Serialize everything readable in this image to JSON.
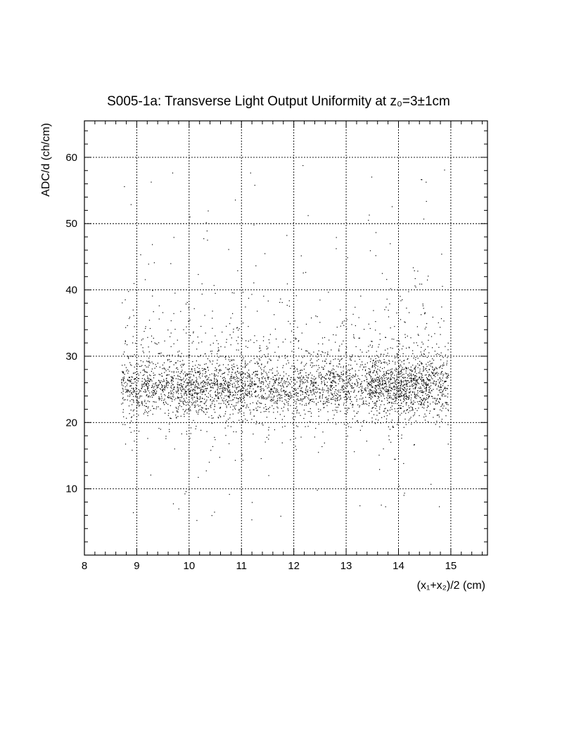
{
  "chart_data": {
    "type": "scatter",
    "title": "S005-1a: Transverse Light Output Uniformity at z₀=3±1cm",
    "xlabel": "(x₁+x₂)/2 (cm)",
    "ylabel": "ADC/d (ch/cm)",
    "xlim": [
      8,
      15.7
    ],
    "ylim": [
      0,
      65.5
    ],
    "x_ticks": [
      8,
      9,
      10,
      11,
      12,
      13,
      14,
      15
    ],
    "y_ticks": [
      10,
      20,
      30,
      40,
      50,
      60
    ],
    "grid": true,
    "marker_color": "#000000",
    "distribution": {
      "x_range": [
        8.7,
        14.95
      ],
      "core_y_mean": 25.5,
      "core_y_range": [
        20,
        30
      ],
      "outlier_y_range": [
        4,
        59
      ],
      "approx_points": 4200
    }
  }
}
